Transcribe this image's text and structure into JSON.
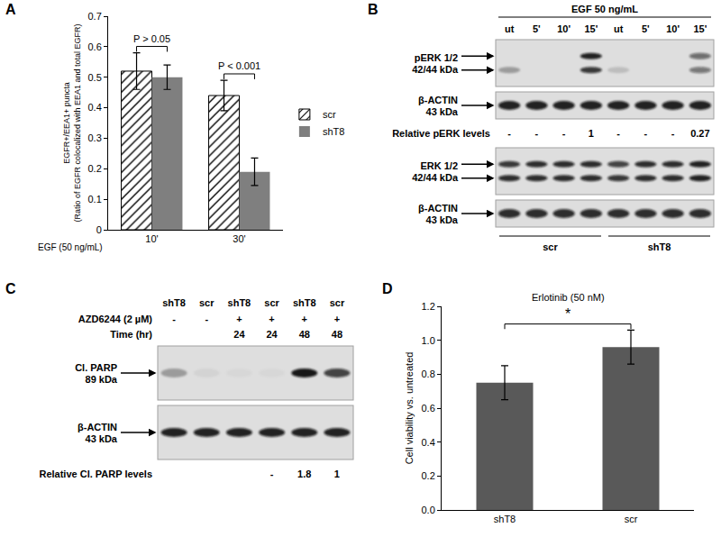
{
  "chart_data": [
    {
      "panel": "A",
      "type": "bar",
      "x_label": "EGF (50 ng/mL)",
      "y_label": [
        "EGFR+/EEA1+ puncta",
        "(Ratio of EGFR colocalized with EEA1 and total EGFR)"
      ],
      "categories": [
        "10'",
        "30'"
      ],
      "series": [
        {
          "name": "scr",
          "color": "#ffffff",
          "marker": "hatch",
          "values": [
            0.52,
            0.44
          ],
          "errors": [
            0.06,
            0.05
          ]
        },
        {
          "name": "shT8",
          "color": "#7f7f7f",
          "values": [
            0.5,
            0.19
          ],
          "errors": [
            0.04,
            0.045
          ]
        }
      ],
      "annotations": [
        {
          "text": "P > 0.05",
          "category": "10'"
        },
        {
          "text": "P < 0.001",
          "category": "30'"
        }
      ],
      "ylim": [
        0,
        0.7
      ],
      "yticks": [
        0,
        0.1,
        0.2,
        0.3,
        0.4,
        0.5,
        0.6,
        0.7
      ],
      "grid": false,
      "legend": "right"
    },
    {
      "panel": "D",
      "type": "bar",
      "title": "Erlotinib (50 nM)",
      "y_label": "Cell viability vs. untreated",
      "categories": [
        "shT8",
        "scr"
      ],
      "values": [
        0.75,
        0.96
      ],
      "errors": [
        0.1,
        0.1
      ],
      "color": "#595959",
      "annotations": [
        {
          "text": "*",
          "categories": [
            "shT8",
            "scr"
          ]
        }
      ],
      "ylim": [
        0,
        1.2
      ],
      "yticks": [
        {
          "value": 0,
          "label": "0.0"
        },
        0.2,
        0.4,
        0.6,
        0.8,
        {
          "value": 1,
          "label": "1.0"
        },
        1.2
      ],
      "grid": false
    }
  ],
  "blots": [
    {
      "panel": "B",
      "header": "EGF 50 ng/mL",
      "lanes": [
        "ut",
        "5'",
        "10'",
        "15'",
        "ut",
        "5'",
        "10'",
        "15'"
      ],
      "rows": [
        {
          "label": [
            "pERK 1/2",
            "42/44 kDa"
          ],
          "bands": [
            [
              0,
              0,
              0,
              0.9,
              0,
              0,
              0,
              0.55
            ],
            [
              0.3,
              0,
              0,
              0.8,
              0.15,
              0,
              0,
              0.5
            ]
          ]
        },
        {
          "label": [
            "β-ACTIN",
            "43 kDa"
          ],
          "bands": [
            [
              0.9,
              0.9,
              0.9,
              0.9,
              0.9,
              0.9,
              0.9,
              0.9
            ]
          ]
        },
        {
          "label": "Relative pERK levels",
          "values": [
            "-",
            "-",
            "-",
            "1",
            "-",
            "-",
            "-",
            "0.27"
          ]
        },
        {
          "label": [
            "ERK 1/2",
            "42/44 kDa"
          ],
          "bands": [
            [
              0.8,
              0.85,
              0.85,
              0.85,
              0.75,
              0.85,
              0.85,
              0.9
            ],
            [
              0.85,
              0.85,
              0.85,
              0.85,
              0.8,
              0.85,
              0.85,
              0.9
            ]
          ]
        },
        {
          "label": [
            "β-ACTIN",
            "43 kDa"
          ],
          "bands": [
            [
              0.85,
              0.85,
              0.85,
              0.85,
              0.85,
              0.85,
              0.85,
              0.85
            ]
          ]
        }
      ],
      "groups": [
        {
          "label": "scr",
          "lanes": 4
        },
        {
          "label": "shT8",
          "lanes": 4
        }
      ]
    },
    {
      "panel": "C",
      "lanes": [
        "shT8",
        "scr",
        "shT8",
        "scr",
        "shT8",
        "scr"
      ],
      "conditions": [
        {
          "label": "AZD6244 (2 µM)",
          "values": [
            "-",
            "-",
            "+",
            "+",
            "+",
            "+"
          ]
        },
        {
          "label": "Time (hr)",
          "values": [
            null,
            null,
            "24",
            "24",
            "48",
            "48"
          ]
        }
      ],
      "rows": [
        {
          "label": [
            "Cl. PARP",
            "89 kDa"
          ],
          "bands": [
            [
              0.3,
              0.05,
              0.03,
              0.03,
              0.95,
              0.75
            ]
          ]
        },
        {
          "label": [
            "β-ACTIN",
            "43 kDa"
          ],
          "bands": [
            [
              0.9,
              0.9,
              0.9,
              0.9,
              0.9,
              0.9
            ]
          ]
        },
        {
          "label": "Relative Cl. PARP levels",
          "values": [
            null,
            null,
            null,
            "-",
            "1.8",
            "1"
          ]
        }
      ]
    }
  ]
}
